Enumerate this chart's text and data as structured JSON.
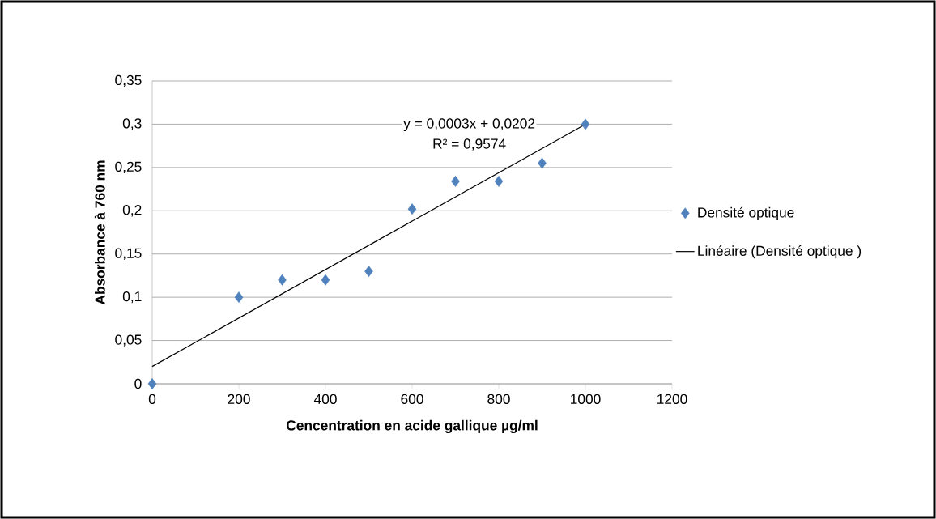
{
  "chart_data": {
    "type": "scatter",
    "xlabel": "Cencentration en acide gallique µg/ml",
    "ylabel": "Absorbance à 760 nm",
    "annotations": [
      "y = 0,0003x + 0,0202",
      "R² = 0,9574"
    ],
    "xlim": [
      0,
      1200
    ],
    "ylim": [
      0,
      0.35
    ],
    "xticks": [
      0,
      200,
      400,
      600,
      800,
      1000,
      1200
    ],
    "yticks": [
      0,
      {
        "value": 0.05,
        "label": "0,05"
      },
      {
        "value": 0.1,
        "label": "0,1"
      },
      {
        "value": 0.15,
        "label": "0,15"
      },
      {
        "value": 0.2,
        "label": "0,2"
      },
      {
        "value": 0.25,
        "label": "0,25"
      },
      {
        "value": 0.3,
        "label": "0,3"
      },
      {
        "value": 0.35,
        "label": "0,35"
      }
    ],
    "grid": "y",
    "legend": "right",
    "marker": "diamond",
    "series": [
      {
        "name": "Densité optique",
        "color": "#4f81bd",
        "x": [
          0,
          200,
          300,
          400,
          500,
          600,
          700,
          800,
          900,
          1000
        ],
        "values": [
          0,
          0.1,
          0.12,
          0.12,
          0.13,
          0.202,
          0.234,
          0.234,
          0.255,
          0.3
        ]
      },
      {
        "name": "Linéaire (Densité optique )",
        "type": "line",
        "marker": "none",
        "color": "#000000",
        "x": [
          0,
          1000
        ],
        "values": [
          0.02,
          0.3
        ]
      }
    ]
  }
}
